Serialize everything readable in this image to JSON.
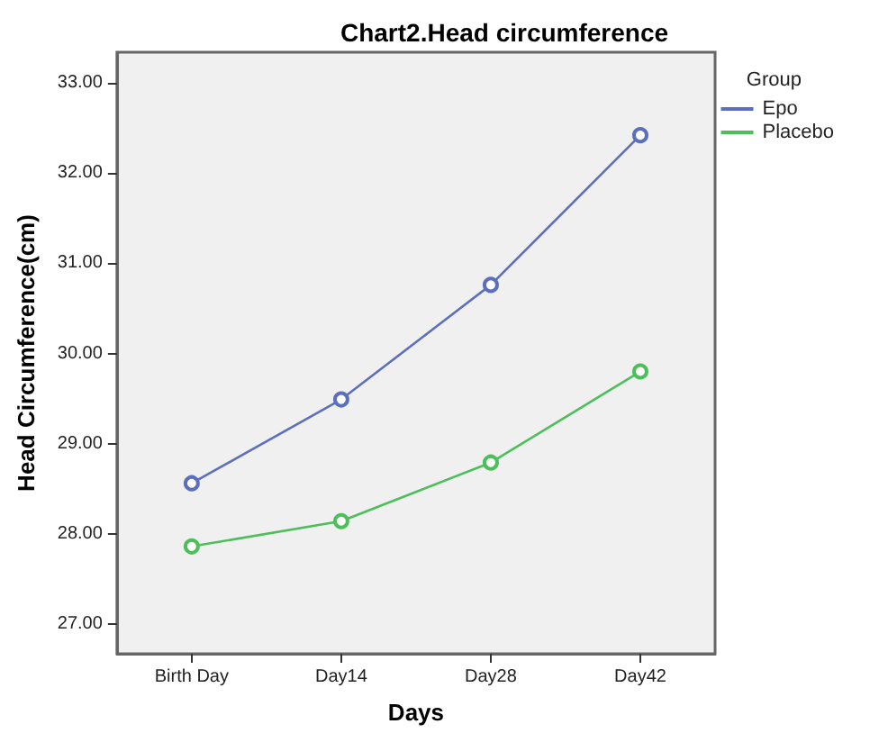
{
  "chart_data": {
    "type": "line",
    "title": "Chart2.Head circumference",
    "xlabel": "Days",
    "ylabel": "Head Circumference(cm)",
    "legend_title": "Group",
    "categories": [
      "Birth Day",
      "Day14",
      "Day28",
      "Day42"
    ],
    "series": [
      {
        "name": "Epo",
        "color": "#5b6fbd",
        "values": [
          28.56,
          29.49,
          30.76,
          32.42
        ]
      },
      {
        "name": "Placebo",
        "color": "#4cbf5a",
        "values": [
          27.86,
          28.14,
          28.79,
          29.8
        ]
      }
    ],
    "ylim": [
      26.67,
      33.34
    ],
    "yticks": [
      {
        "value": 27,
        "label": "27.00"
      },
      {
        "value": 28,
        "label": "28.00"
      },
      {
        "value": 29,
        "label": "29.00"
      },
      {
        "value": 30,
        "label": "30.00"
      },
      {
        "value": 31,
        "label": "31.00"
      },
      {
        "value": 32,
        "label": "32.00"
      },
      {
        "value": 33,
        "label": "33.00"
      }
    ],
    "grid": false,
    "legend": "top right",
    "marker": "circle",
    "line_style": "solid"
  }
}
